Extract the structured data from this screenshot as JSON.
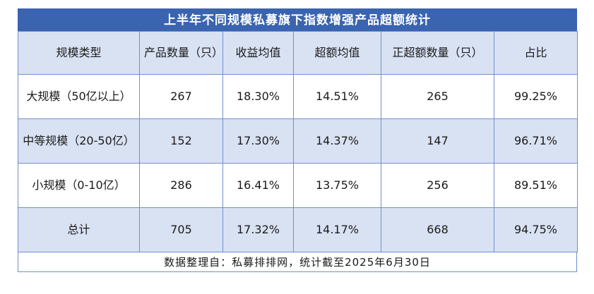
{
  "title": "上半年不同规模私募旗下指数增强产品超额统计",
  "colors": {
    "title_bg": "#3a63b0",
    "header_bg": "#d9e2f3",
    "band_bg": "#d9e2f3",
    "border": "#6f8fcf"
  },
  "headers": [
    "规模类型",
    "产品数量（只）",
    "收益均值",
    "超额均值",
    "正超额数量（只）",
    "占比"
  ],
  "rows": [
    {
      "type": "大规模（50亿以上）",
      "count": "267",
      "ret": "18.30%",
      "excess": "14.51%",
      "positive": "265",
      "ratio": "99.25%"
    },
    {
      "type": "中等规模（20-50亿）",
      "count": "152",
      "ret": "17.30%",
      "excess": "14.37%",
      "positive": "147",
      "ratio": "96.71%"
    },
    {
      "type": "小规模（0-10亿）",
      "count": "286",
      "ret": "16.41%",
      "excess": "13.75%",
      "positive": "256",
      "ratio": "89.51%"
    },
    {
      "type": "总计",
      "count": "705",
      "ret": "17.32%",
      "excess": "14.17%",
      "positive": "668",
      "ratio": "94.75%"
    }
  ],
  "footer": "数据整理自：私募排排网，统计截至2025年6月30日"
}
